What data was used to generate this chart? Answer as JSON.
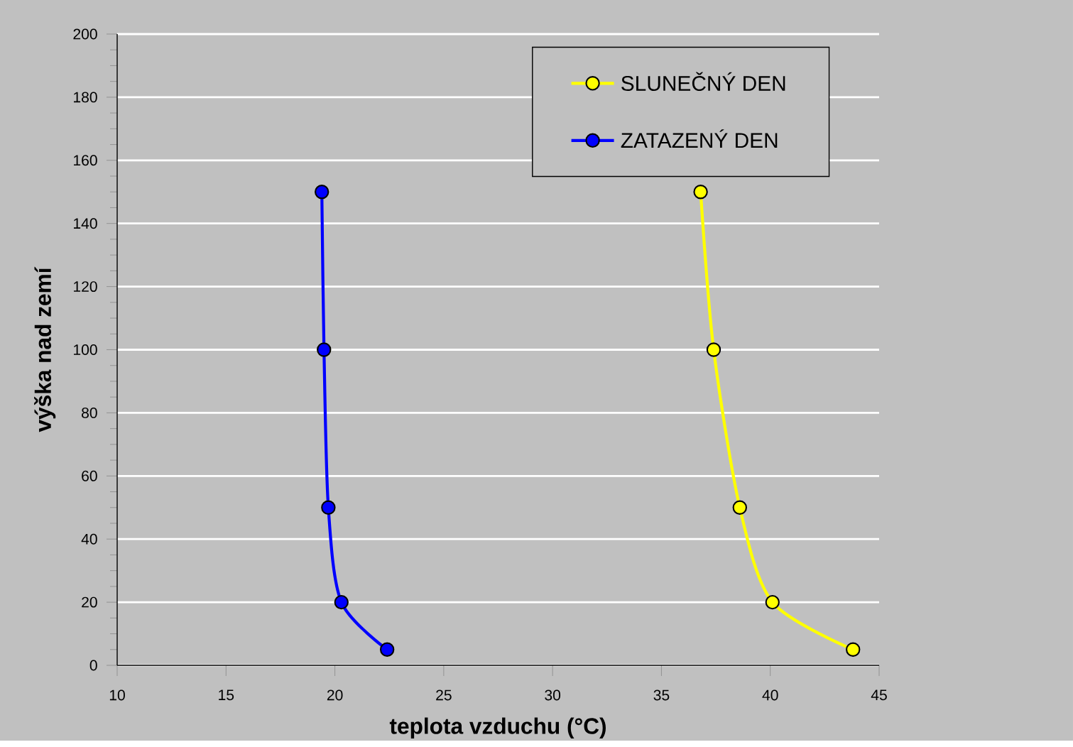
{
  "chart_data": {
    "type": "line",
    "xlabel": "teplota vzduchu (°C)",
    "ylabel": "výška nad zemí",
    "series": [
      {
        "name": "SLUNEČNÝ DEN",
        "color": "#ffff00",
        "x": [
          43.8,
          40.1,
          38.6,
          37.4,
          36.8
        ],
        "values": [
          5,
          20,
          50,
          100,
          150
        ]
      },
      {
        "name": "ZATAZENÝ DEN",
        "color": "#0000ff",
        "x": [
          22.4,
          20.3,
          19.7,
          19.5,
          19.4
        ],
        "values": [
          5,
          20,
          50,
          100,
          150
        ]
      }
    ],
    "xlim": [
      10,
      45
    ],
    "xticks": [
      10,
      15,
      20,
      25,
      30,
      35,
      40,
      45
    ],
    "ylim": [
      0,
      200
    ],
    "yticks": [
      0,
      20,
      40,
      60,
      80,
      100,
      120,
      140,
      160,
      180,
      200
    ],
    "grid": "y",
    "legend": "top right",
    "marker": "circle",
    "line_style": "solid"
  }
}
